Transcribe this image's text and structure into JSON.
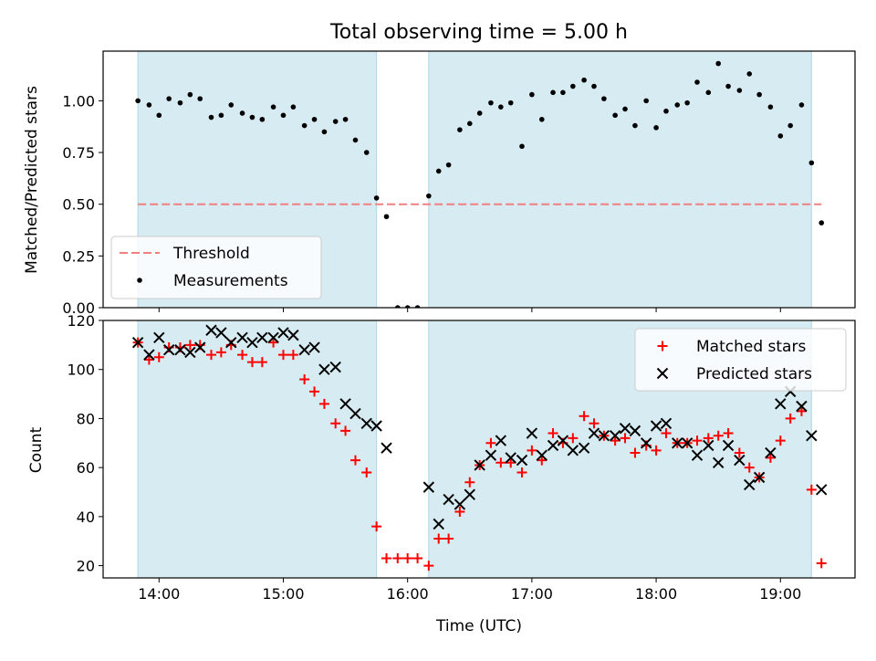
{
  "chart_data": {
    "type": "scatter",
    "title": "Total observing time = 5.00 h",
    "x_axis": {
      "label": "Time (UTC)",
      "range_hours": [
        13.55,
        19.6
      ],
      "tick_values": [
        14,
        15,
        16,
        17,
        18,
        19
      ],
      "tick_labels": [
        "14:00",
        "15:00",
        "16:00",
        "17:00",
        "18:00",
        "19:00"
      ]
    },
    "shaded_windows": [
      {
        "start": 13.83,
        "end": 15.75,
        "color": "#add8e6"
      },
      {
        "start": 16.17,
        "end": 19.25,
        "color": "#add8e6"
      }
    ],
    "panels": [
      {
        "id": "ratio",
        "ylabel": "Matched/Predicted stars",
        "ylim": [
          0.0,
          1.24
        ],
        "yticks": [
          0.0,
          0.25,
          0.5,
          0.75,
          1.0
        ],
        "ytick_labels": [
          "0.00",
          "0.25",
          "0.50",
          "0.75",
          "1.00"
        ],
        "legend_position": "lower-left",
        "threshold": {
          "name": "Threshold",
          "value": 0.5,
          "x_range": [
            13.83,
            19.33
          ],
          "color": "#f08080"
        },
        "measurements": {
          "name": "Measurements",
          "color": "#000000",
          "x": [
            13.83,
            13.92,
            14.0,
            14.08,
            14.17,
            14.25,
            14.33,
            14.42,
            14.5,
            14.58,
            14.67,
            14.75,
            14.83,
            14.92,
            15.0,
            15.08,
            15.17,
            15.25,
            15.33,
            15.42,
            15.5,
            15.58,
            15.67,
            15.75,
            15.83,
            15.92,
            16.0,
            16.08,
            16.17,
            16.25,
            16.33,
            16.42,
            16.5,
            16.58,
            16.67,
            16.75,
            16.83,
            16.92,
            17.0,
            17.08,
            17.17,
            17.25,
            17.33,
            17.42,
            17.5,
            17.58,
            17.67,
            17.75,
            17.83,
            17.92,
            18.0,
            18.08,
            18.17,
            18.25,
            18.33,
            18.42,
            18.5,
            18.58,
            18.67,
            18.75,
            18.83,
            18.92,
            19.0,
            19.08,
            19.17,
            19.25,
            19.33
          ],
          "y": [
            1.0,
            0.98,
            0.93,
            1.01,
            0.99,
            1.03,
            1.01,
            0.92,
            0.93,
            0.98,
            0.94,
            0.92,
            0.91,
            0.97,
            0.93,
            0.97,
            0.88,
            0.91,
            0.85,
            0.9,
            0.91,
            0.81,
            0.75,
            0.53,
            0.44,
            0.0,
            0.0,
            0.0,
            0.54,
            0.66,
            0.69,
            0.86,
            0.89,
            0.94,
            0.99,
            0.97,
            0.99,
            0.78,
            1.03,
            0.91,
            1.04,
            1.04,
            1.07,
            1.1,
            1.07,
            1.01,
            0.93,
            0.96,
            0.88,
            1.0,
            0.87,
            0.95,
            0.98,
            0.99,
            1.09,
            1.04,
            1.18,
            1.07,
            1.05,
            1.13,
            1.03,
            0.97,
            0.83,
            0.88,
            0.98,
            0.7,
            0.41
          ]
        }
      },
      {
        "id": "counts",
        "ylabel": "Count",
        "ylim": [
          15,
          120
        ],
        "yticks": [
          20,
          40,
          60,
          80,
          100,
          120
        ],
        "ytick_labels": [
          "20",
          "40",
          "60",
          "80",
          "100",
          "120"
        ],
        "legend_position": "top-right",
        "series": [
          {
            "name": "Matched stars",
            "marker": "plus",
            "color": "#ff0000",
            "x": [
              13.83,
              13.92,
              14.0,
              14.08,
              14.17,
              14.25,
              14.33,
              14.42,
              14.5,
              14.58,
              14.67,
              14.75,
              14.83,
              14.92,
              15.0,
              15.08,
              15.17,
              15.25,
              15.33,
              15.42,
              15.5,
              15.58,
              15.67,
              15.75,
              15.83,
              15.92,
              16.0,
              16.08,
              16.17,
              16.25,
              16.33,
              16.42,
              16.5,
              16.58,
              16.67,
              16.75,
              16.83,
              16.92,
              17.0,
              17.08,
              17.17,
              17.25,
              17.33,
              17.42,
              17.5,
              17.58,
              17.67,
              17.75,
              17.83,
              17.92,
              18.0,
              18.08,
              18.17,
              18.25,
              18.33,
              18.42,
              18.5,
              18.58,
              18.67,
              18.75,
              18.83,
              18.92,
              19.0,
              19.08,
              19.17,
              19.25,
              19.33
            ],
            "y": [
              111,
              104,
              105,
              109,
              109,
              110,
              110,
              106,
              107,
              110,
              106,
              103,
              103,
              111,
              106,
              106,
              96,
              91,
              86,
              78,
              75,
              63,
              58,
              36,
              23,
              23,
              23,
              23,
              20,
              31,
              31,
              42,
              54,
              61,
              70,
              62,
              62,
              58,
              67,
              63,
              74,
              70,
              72,
              81,
              78,
              73,
              71,
              72,
              66,
              69,
              67,
              74,
              70,
              70,
              71,
              72,
              73,
              74,
              66,
              60,
              56,
              64,
              71,
              80,
              83,
              51,
              21
            ]
          },
          {
            "name": "Predicted stars",
            "marker": "x",
            "color": "#000000",
            "x": [
              13.83,
              13.92,
              14.0,
              14.08,
              14.17,
              14.25,
              14.33,
              14.42,
              14.5,
              14.58,
              14.67,
              14.75,
              14.83,
              14.92,
              15.0,
              15.08,
              15.17,
              15.25,
              15.33,
              15.42,
              15.5,
              15.58,
              15.67,
              15.75,
              15.83,
              16.17,
              16.25,
              16.33,
              16.42,
              16.5,
              16.58,
              16.67,
              16.75,
              16.83,
              16.92,
              17.0,
              17.08,
              17.17,
              17.25,
              17.33,
              17.42,
              17.5,
              17.58,
              17.67,
              17.75,
              17.83,
              17.92,
              18.0,
              18.08,
              18.17,
              18.25,
              18.33,
              18.42,
              18.5,
              18.58,
              18.67,
              18.75,
              18.83,
              18.92,
              19.0,
              19.08,
              19.17,
              19.25,
              19.33
            ],
            "y": [
              111,
              106,
              113,
              108,
              108,
              107,
              109,
              116,
              115,
              111,
              113,
              111,
              113,
              113,
              115,
              114,
              108,
              109,
              100,
              101,
              86,
              82,
              78,
              77,
              68,
              52,
              37,
              47,
              45,
              49,
              61,
              65,
              71,
              64,
              63,
              74,
              65,
              69,
              71,
              67,
              68,
              74,
              73,
              73,
              76,
              75,
              70,
              77,
              78,
              70,
              70,
              65,
              69,
              62,
              69,
              63,
              53,
              56,
              66,
              86,
              91,
              85,
              73,
              51
            ]
          }
        ]
      }
    ]
  }
}
